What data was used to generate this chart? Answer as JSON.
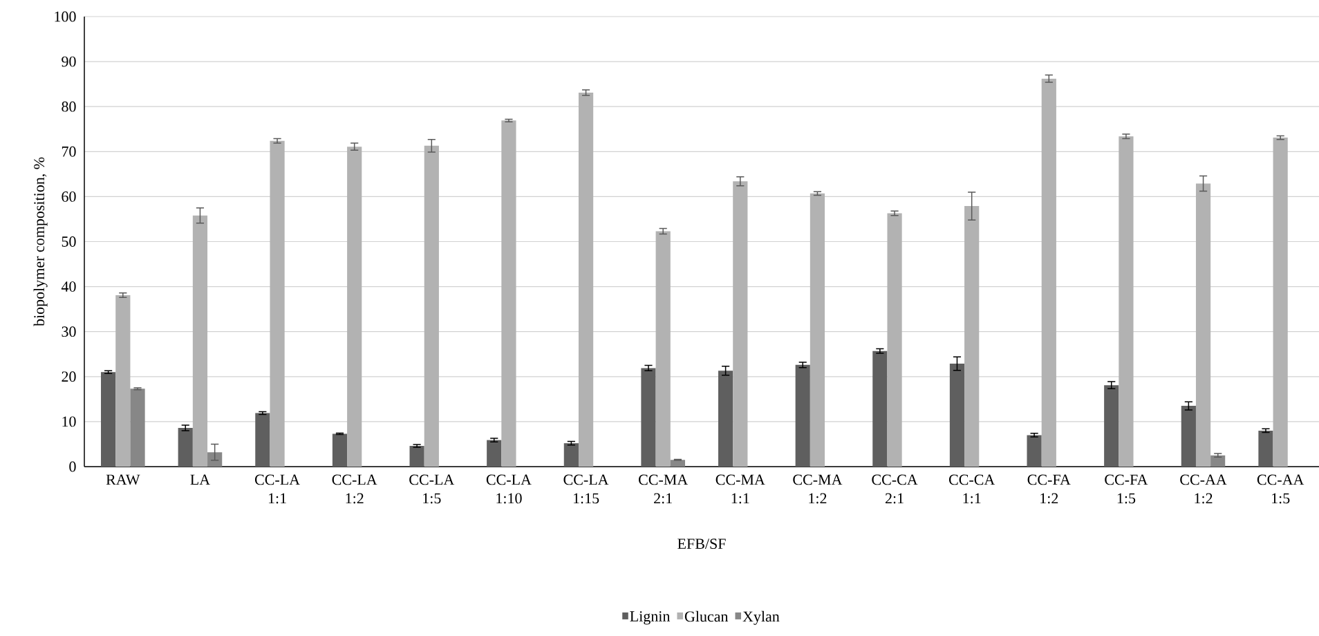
{
  "chart_data": {
    "type": "bar",
    "xlabel": "EFB/SF",
    "ylabel": "biopolymer composition, %",
    "categories": [
      "RAW",
      "LA",
      "CC-LA 1:1",
      "CC-LA 1:2",
      "CC-LA 1:5",
      "CC-LA 1:10",
      "CC-LA 1:15",
      "CC-MA 2:1",
      "CC-MA 1:1",
      "CC-MA 1:2",
      "CC-CA 2:1",
      "CC-CA 1:1",
      "CC-FA 1:2",
      "CC-FA 1:5",
      "CC-AA 1:2",
      "CC-AA 1:5"
    ],
    "series": [
      {
        "name": "Lignin",
        "color": "#5f5f5f",
        "values": [
          21.0,
          8.6,
          11.9,
          7.3,
          4.6,
          5.9,
          5.2,
          21.9,
          21.3,
          22.6,
          25.7,
          22.9,
          7.0,
          18.1,
          13.5,
          8.0
        ],
        "errors": [
          0.3,
          0.6,
          0.3,
          0.15,
          0.3,
          0.4,
          0.4,
          0.6,
          1.0,
          0.6,
          0.5,
          1.5,
          0.4,
          0.8,
          0.9,
          0.4
        ]
      },
      {
        "name": "Glucan",
        "color": "#b2b2b2",
        "values": [
          38.1,
          55.8,
          72.4,
          71.1,
          71.3,
          76.9,
          83.1,
          52.3,
          63.4,
          60.7,
          56.3,
          57.9,
          86.2,
          73.4,
          62.9,
          73.1
        ],
        "errors": [
          0.5,
          1.7,
          0.5,
          0.8,
          1.4,
          0.3,
          0.6,
          0.6,
          1.0,
          0.4,
          0.5,
          3.1,
          0.8,
          0.5,
          1.7,
          0.4
        ]
      },
      {
        "name": "Xylan",
        "color": "#878787",
        "values": [
          17.3,
          3.2,
          null,
          null,
          null,
          null,
          null,
          1.5,
          null,
          null,
          null,
          null,
          null,
          null,
          2.5,
          null
        ],
        "errors": [
          0.2,
          1.8,
          null,
          null,
          null,
          null,
          null,
          0.1,
          null,
          null,
          null,
          null,
          null,
          null,
          0.4,
          null
        ]
      }
    ],
    "ylim": [
      0,
      100
    ],
    "yticks": [
      0,
      10,
      20,
      30,
      40,
      50,
      60,
      70,
      80,
      90,
      100
    ],
    "grid": "y",
    "legend": "bottom"
  }
}
